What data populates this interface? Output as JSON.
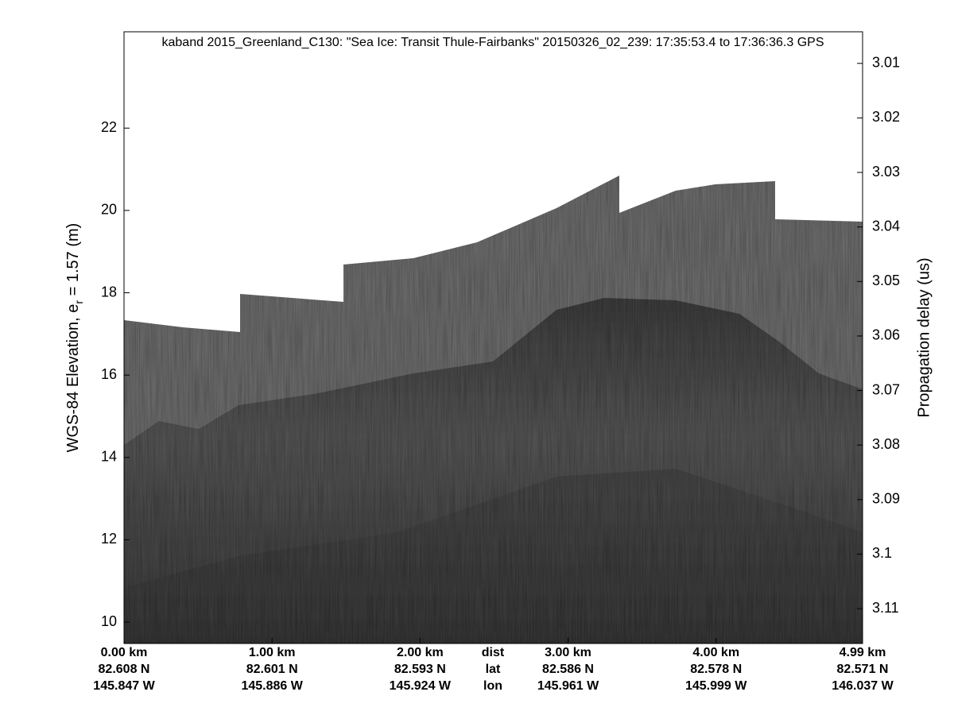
{
  "chart_data": {
    "type": "echogram",
    "title": "kaband 2015_Greenland_C130: \"Sea Ice: Transit Thule-Fairbanks\"  20150326_02_239: 17:35:53.4 to 17:36:36.3 GPS",
    "ylabel": "WGS-84 Elevation, e",
    "ylabel_sub": "r",
    "ylabel_rest": " = 1.57 (m)",
    "y2label": "Propagation delay (us)",
    "xlim": [
      0,
      4.99
    ],
    "xticks": [
      {
        "value": 0,
        "label": "0.00 km"
      },
      {
        "value": 1,
        "label": "1.00 km"
      },
      {
        "value": 2,
        "label": "2.00 km"
      },
      {
        "value": 3,
        "label": "3.00 km"
      },
      {
        "value": 4,
        "label": "4.00 km"
      },
      {
        "value": 4.99,
        "label": "4.99 km"
      }
    ],
    "x_lat_labels": [
      "82.608 N",
      "82.601 N",
      "82.593 N",
      "82.586 N",
      "82.578 N",
      "82.571 N"
    ],
    "x_lon_labels": [
      "145.847 W",
      "145.886 W",
      "145.924 W",
      "145.961 W",
      "145.999 W",
      "146.037 W"
    ],
    "x_row_labels": [
      "dist",
      "lat",
      "lon"
    ],
    "ylim": [
      9.48,
      24.34
    ],
    "yticks": [
      10,
      12,
      14,
      16,
      18,
      20,
      22
    ],
    "y2lim": [
      3.1164,
      3.0042
    ],
    "y2ticks": [
      3.01,
      3.02,
      3.03,
      3.04,
      3.05,
      3.06,
      3.07,
      3.08,
      3.09,
      3.1,
      3.11
    ]
  }
}
